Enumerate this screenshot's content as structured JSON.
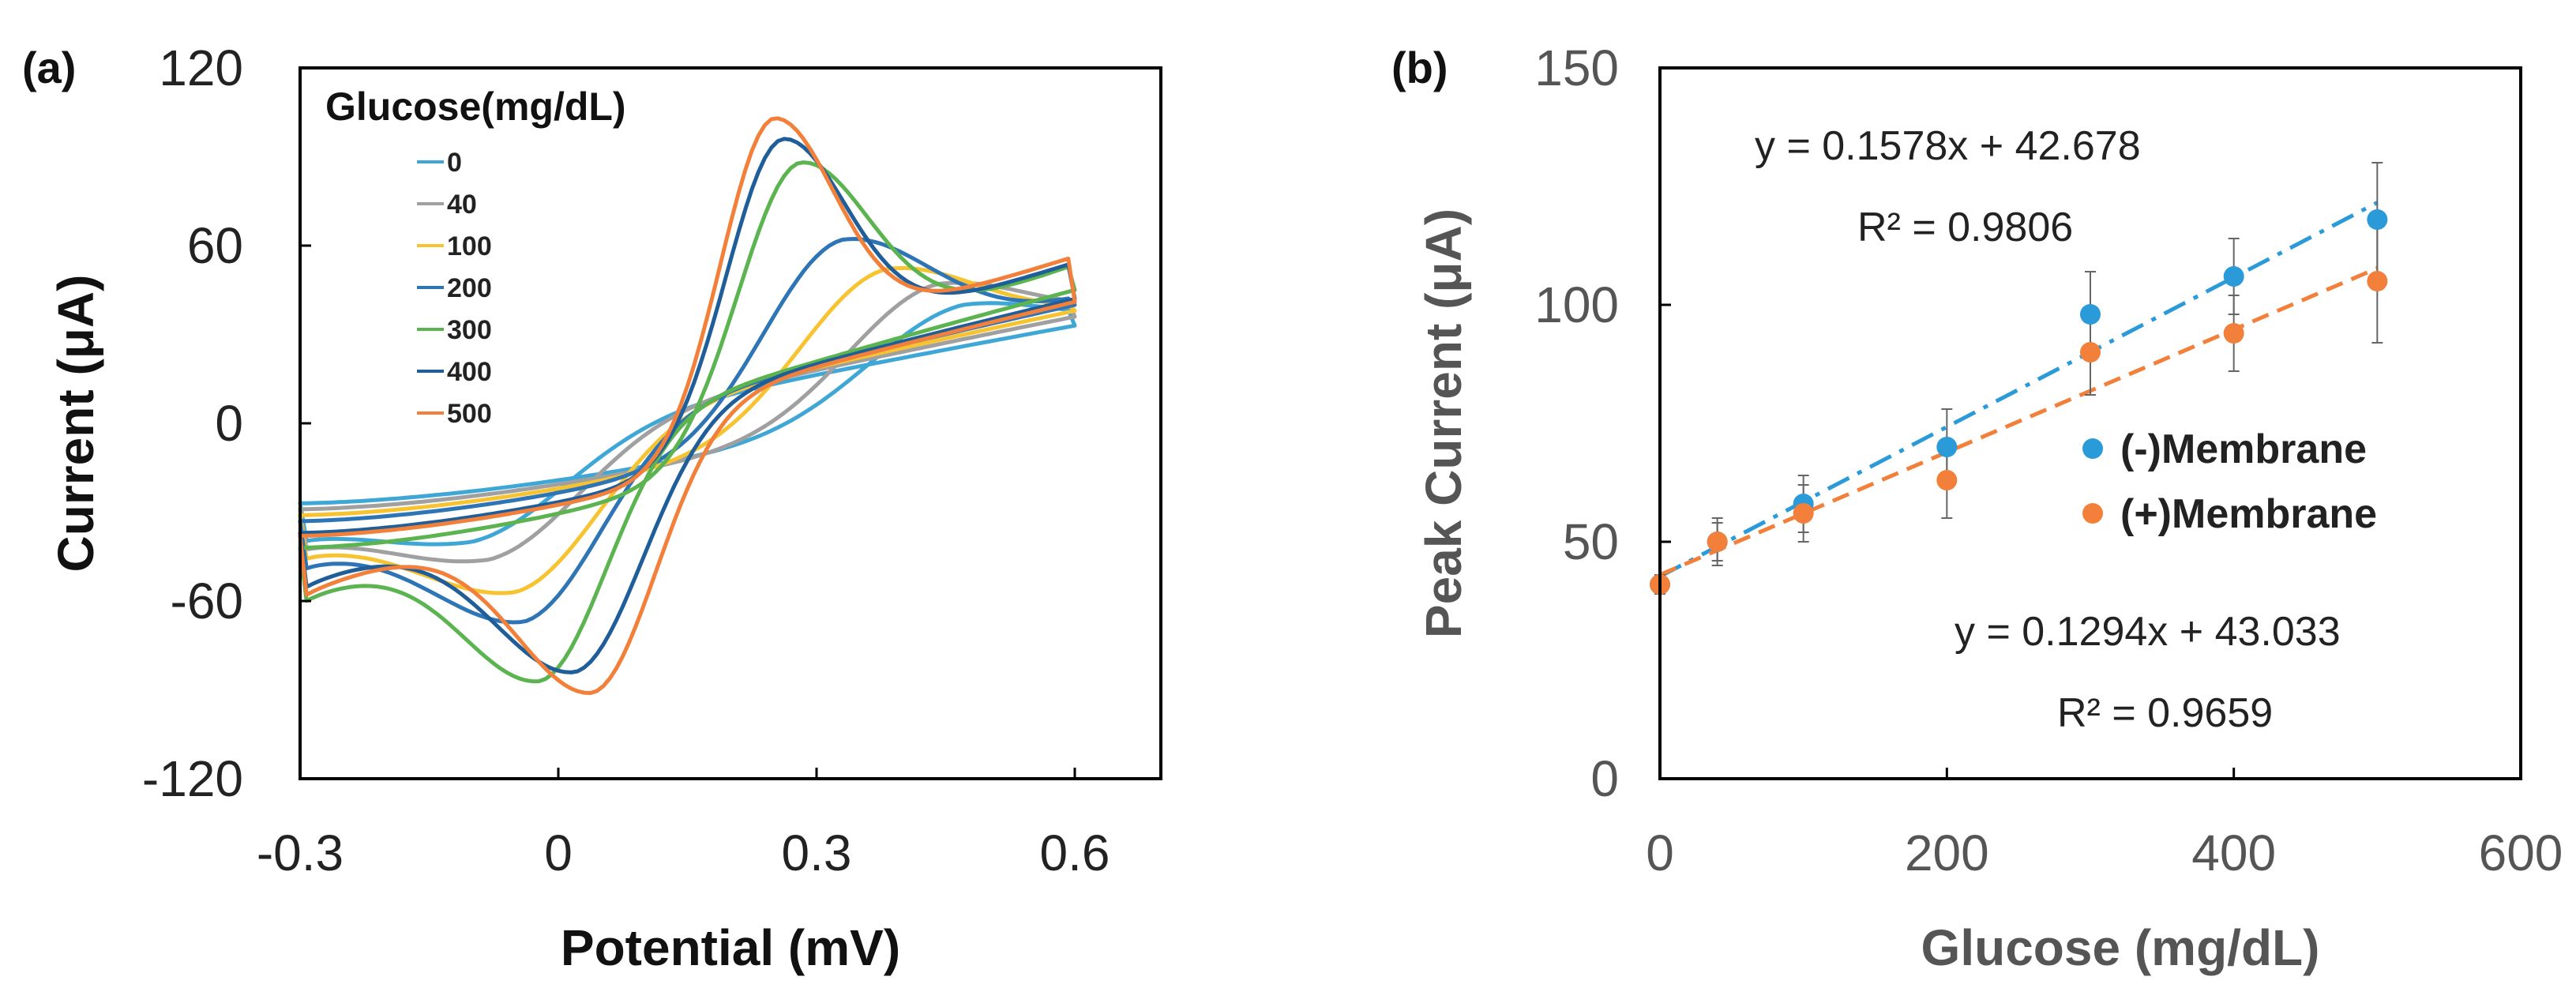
{
  "chart_data": [
    {
      "type": "line",
      "panel_label": "(a)",
      "title": "",
      "xlabel": "Potential (mV)",
      "ylabel": "Current (μA)",
      "xlim": [
        -0.3,
        0.7
      ],
      "ylim": [
        -120,
        120
      ],
      "xticks": [
        "-0.3",
        "0",
        "0.3",
        "0.6"
      ],
      "yticks": [
        "120",
        "60",
        "0",
        "-60",
        "-120"
      ],
      "legend_title": "Glucose(mg/dL)",
      "legend_position": "top-left",
      "series": [
        {
          "name": "0",
          "color": "#3FA7D6",
          "anodic_peak": [
            0.47,
            40
          ],
          "cathodic_peak": [
            -0.1,
            -40
          ],
          "start": [
            -0.3,
            -27
          ],
          "end": [
            0.6,
            33
          ]
        },
        {
          "name": "40",
          "color": "#A0A0A0",
          "anodic_peak": [
            0.44,
            47
          ],
          "cathodic_peak": [
            -0.08,
            -46
          ],
          "start": [
            -0.3,
            -29
          ],
          "end": [
            0.6,
            36
          ]
        },
        {
          "name": "100",
          "color": "#F7C331",
          "anodic_peak": [
            0.38,
            52
          ],
          "cathodic_peak": [
            -0.05,
            -57
          ],
          "start": [
            -0.3,
            -31
          ],
          "end": [
            0.6,
            38
          ]
        },
        {
          "name": "200",
          "color": "#2E75B6",
          "anodic_peak": [
            0.33,
            62
          ],
          "cathodic_peak": [
            -0.04,
            -67
          ],
          "start": [
            -0.3,
            -33
          ],
          "end": [
            0.6,
            40
          ]
        },
        {
          "name": "300",
          "color": "#5BB450",
          "anodic_peak": [
            0.28,
            88
          ],
          "cathodic_peak": [
            -0.02,
            -87
          ],
          "start": [
            -0.3,
            -42
          ],
          "end": [
            0.6,
            45
          ]
        },
        {
          "name": "400",
          "color": "#1F5E99",
          "anodic_peak": [
            0.26,
            96
          ],
          "cathodic_peak": [
            0.02,
            -84
          ],
          "start": [
            -0.3,
            -37
          ],
          "end": [
            0.6,
            42
          ]
        },
        {
          "name": "500",
          "color": "#F2803A",
          "anodic_peak": [
            0.25,
            103
          ],
          "cathodic_peak": [
            0.04,
            -91
          ],
          "start": [
            -0.3,
            -38
          ],
          "end": [
            0.6,
            41
          ]
        }
      ]
    },
    {
      "type": "scatter",
      "panel_label": "(b)",
      "title": "",
      "xlabel": "Glucose (mg/dL)",
      "ylabel": "Peak Current (μA)",
      "xlim": [
        0,
        600
      ],
      "ylim": [
        0,
        150
      ],
      "xticks": [
        "0",
        "200",
        "400",
        "600"
      ],
      "yticks": [
        "150",
        "100",
        "50",
        "0"
      ],
      "legend_position": "center-right",
      "series": [
        {
          "name": "(-)Membrane",
          "color": "#2A9AD8",
          "x": [
            0,
            40,
            100,
            200,
            300,
            400,
            500
          ],
          "y": [
            41,
            50,
            58,
            70,
            98,
            106,
            118
          ],
          "error": [
            2,
            4,
            6,
            8,
            9,
            8,
            12
          ],
          "fit": {
            "slope": 0.1578,
            "intercept": 42.678,
            "equation": "y = 0.1578x + 42.678",
            "r2": "R² = 0.9806"
          }
        },
        {
          "name": "(+)Membrane",
          "color": "#F2803A",
          "x": [
            0,
            40,
            100,
            200,
            300,
            400,
            500
          ],
          "y": [
            41,
            50,
            56,
            63,
            90,
            94,
            105
          ],
          "error": [
            2,
            5,
            6,
            8,
            9,
            8,
            13
          ],
          "fit": {
            "slope": 0.1294,
            "intercept": 43.033,
            "equation": "y = 0.1294x + 43.033",
            "r2": "R² = 0.9659"
          }
        }
      ]
    }
  ]
}
